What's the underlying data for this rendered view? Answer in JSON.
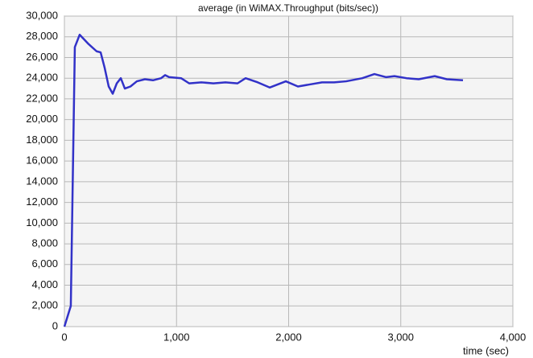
{
  "chart_data": {
    "type": "line",
    "title": "average (in WiMAX.Throughput (bits/sec))",
    "x_label": "time (sec)",
    "x": [
      0,
      57,
      93,
      136,
      215,
      287,
      323,
      359,
      395,
      431,
      467,
      503,
      539,
      589,
      646,
      718,
      790,
      862,
      898,
      934,
      1041,
      1113,
      1221,
      1329,
      1436,
      1544,
      1616,
      1724,
      1831,
      1975,
      2083,
      2190,
      2298,
      2406,
      2513,
      2657,
      2765,
      2870,
      2944,
      3052,
      3160,
      3303,
      3411,
      3555
    ],
    "series": [
      {
        "name": "average (in WiMAX.Throughput (bits/sec))",
        "color": "#3232c8",
        "values": [
          0,
          2000,
          27000,
          28200,
          27300,
          26600,
          26500,
          25000,
          23200,
          22500,
          23500,
          24000,
          23000,
          23200,
          23700,
          23900,
          23800,
          24000,
          24300,
          24100,
          24000,
          23500,
          23600,
          23500,
          23600,
          23500,
          24000,
          23600,
          23100,
          23700,
          23200,
          23400,
          23600,
          23600,
          23700,
          24000,
          24400,
          24100,
          24200,
          24000,
          23900,
          24200,
          23900,
          23800
        ]
      }
    ],
    "xlim": [
      0,
      4000
    ],
    "xticks": [
      0,
      {
        "value": 1000,
        "label": "1,000"
      },
      {
        "value": 2000,
        "label": "2,000"
      },
      {
        "value": 3000,
        "label": "3,000"
      },
      {
        "value": 4000,
        "label": "4,000"
      }
    ],
    "ylim": [
      0,
      30000
    ],
    "yticks": [
      0,
      {
        "value": 2000,
        "label": "2,000"
      },
      {
        "value": 4000,
        "label": "4,000"
      },
      {
        "value": 6000,
        "label": "6,000"
      },
      {
        "value": 8000,
        "label": "8,000"
      },
      {
        "value": 10000,
        "label": "10,000"
      },
      {
        "value": 12000,
        "label": "12,000"
      },
      {
        "value": 14000,
        "label": "14,000"
      },
      {
        "value": 16000,
        "label": "16,000"
      },
      {
        "value": 18000,
        "label": "18,000"
      },
      {
        "value": 20000,
        "label": "20,000"
      },
      {
        "value": 22000,
        "label": "22,000"
      },
      {
        "value": 24000,
        "label": "24,000"
      },
      {
        "value": 26000,
        "label": "26,000"
      },
      {
        "value": 28000,
        "label": "28,000"
      },
      {
        "value": 30000,
        "label": "30,000"
      }
    ],
    "grid": true
  }
}
